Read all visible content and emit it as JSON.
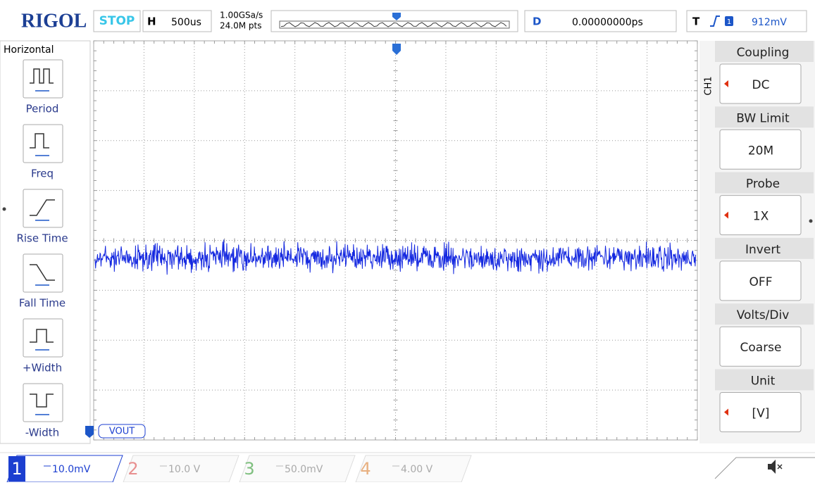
{
  "header": {
    "brand": "RIGOL",
    "status": "STOP",
    "timebase_label": "H",
    "timebase": "500us",
    "sample_rate": "1.00GSa/s",
    "memory_depth": "24.0M pts",
    "delay_label": "D",
    "delay": "0.00000000ps",
    "trigger_label": "T",
    "trigger_source": "1",
    "trigger_level": "912mV"
  },
  "left_menu": {
    "title": "Horizontal",
    "items": [
      "Period",
      "Freq",
      "Rise Time",
      "Fall Time",
      "+Width",
      "-Width"
    ]
  },
  "channel_label": "VOUT",
  "right_menu": {
    "tab": "CH1",
    "items": [
      {
        "label": "Coupling",
        "value": "DC"
      },
      {
        "label": "BW Limit",
        "value": "20M"
      },
      {
        "label": "Probe",
        "value": "1X"
      },
      {
        "label": "Invert",
        "value": "OFF"
      },
      {
        "label": "Volts/Div",
        "value": "Coarse"
      },
      {
        "label": "Unit",
        "value": "[V]"
      }
    ]
  },
  "channels": [
    {
      "number": "1",
      "scale": "10.0mV"
    },
    {
      "number": "2",
      "scale": "10.0 V"
    },
    {
      "number": "3",
      "scale": "50.0mV"
    },
    {
      "number": "4",
      "scale": "4.00 V"
    }
  ]
}
